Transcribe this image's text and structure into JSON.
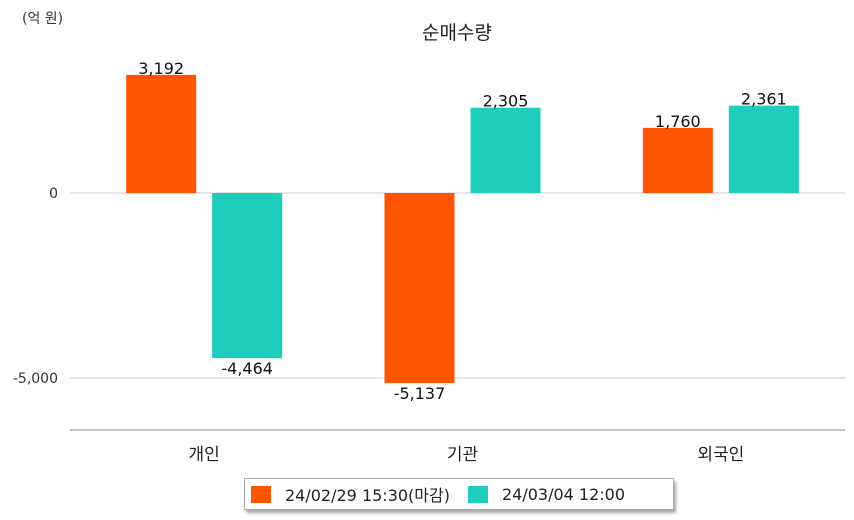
{
  "chart_data": {
    "type": "bar",
    "title": "순매수량",
    "unit_label": "(억 원)",
    "categories": [
      "개인",
      "기관",
      "외국인"
    ],
    "series": [
      {
        "name": "24/02/29 15:30(마감)",
        "color": "#ff5400",
        "values": [
          3192,
          -5137,
          1760
        ]
      },
      {
        "name": "24/03/04 12:00",
        "color": "#1ecdbb",
        "values": [
          -4464,
          2305,
          2361
        ]
      }
    ],
    "value_labels": [
      [
        "3,192",
        "-5,137",
        "1,760"
      ],
      [
        "-4,464",
        "2,305",
        "2,361"
      ]
    ],
    "y_ticks": [
      0,
      -5000
    ],
    "y_tick_labels": [
      "0",
      "-5,000"
    ],
    "ylim": [
      -6500,
      4200
    ],
    "grid": true,
    "legend_position": "bottom"
  }
}
